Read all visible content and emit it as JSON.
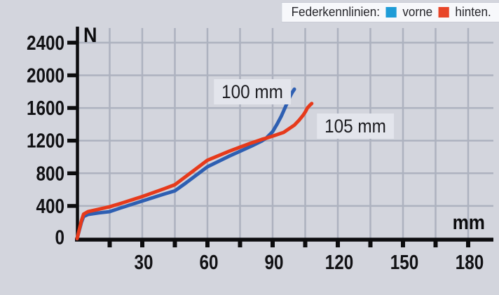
{
  "page": {
    "background": "#d3d5dd"
  },
  "legend": {
    "title": "Federkennlinien:",
    "items": [
      {
        "label": "vorne",
        "color": "#1e9cd7"
      },
      {
        "label": "hinten.",
        "color": "#e84629"
      }
    ]
  },
  "axis": {
    "x_unit": "mm",
    "y_unit": "N"
  },
  "colors": {
    "grid": "#adb2bf",
    "axis": "#0c0c0e",
    "tick_label": "#111114",
    "annotation_bg": "#e3e5ec"
  },
  "chart_data": {
    "type": "line",
    "title": "Federkennlinien",
    "xlabel": "mm",
    "ylabel": "N",
    "xlim": [
      0,
      191
    ],
    "ylim": [
      0,
      2580
    ],
    "grid": true,
    "legend_position": "top-right",
    "x_ticks": [
      15,
      30,
      45,
      60,
      75,
      90,
      105,
      120,
      135,
      150,
      165,
      180
    ],
    "x_labeled_ticks": [
      30,
      60,
      90,
      120,
      150,
      180
    ],
    "y_ticks": [
      400,
      800,
      1200,
      1600,
      2000,
      2400
    ],
    "y_origin_label": "0",
    "series": [
      {
        "name": "vorne",
        "color": "#2e5fb2",
        "annotation": "100 mm",
        "points": [
          [
            0,
            0
          ],
          [
            1,
            100
          ],
          [
            2,
            200
          ],
          [
            3,
            270
          ],
          [
            5,
            295
          ],
          [
            10,
            315
          ],
          [
            15,
            330
          ],
          [
            20,
            375
          ],
          [
            30,
            460
          ],
          [
            40,
            545
          ],
          [
            45,
            585
          ],
          [
            50,
            680
          ],
          [
            60,
            880
          ],
          [
            70,
            1010
          ],
          [
            75,
            1070
          ],
          [
            80,
            1130
          ],
          [
            85,
            1195
          ],
          [
            87,
            1230
          ],
          [
            90,
            1310
          ],
          [
            92,
            1400
          ],
          [
            94,
            1500
          ],
          [
            95,
            1560
          ],
          [
            96,
            1620
          ],
          [
            97,
            1680
          ],
          [
            98,
            1740
          ],
          [
            99,
            1790
          ],
          [
            100,
            1830
          ]
        ]
      },
      {
        "name": "hinten",
        "color": "#e63a1b",
        "annotation": "105 mm",
        "points": [
          [
            0,
            0
          ],
          [
            1,
            110
          ],
          [
            2,
            220
          ],
          [
            3,
            300
          ],
          [
            5,
            330
          ],
          [
            10,
            360
          ],
          [
            15,
            390
          ],
          [
            20,
            430
          ],
          [
            30,
            515
          ],
          [
            40,
            610
          ],
          [
            45,
            660
          ],
          [
            50,
            760
          ],
          [
            60,
            960
          ],
          [
            70,
            1070
          ],
          [
            75,
            1120
          ],
          [
            80,
            1170
          ],
          [
            85,
            1215
          ],
          [
            87,
            1230
          ],
          [
            90,
            1255
          ],
          [
            95,
            1300
          ],
          [
            100,
            1390
          ],
          [
            102,
            1445
          ],
          [
            104,
            1510
          ],
          [
            105,
            1550
          ],
          [
            106,
            1600
          ],
          [
            107,
            1630
          ],
          [
            108,
            1655
          ]
        ]
      }
    ],
    "annotations": [
      {
        "text": "100 mm",
        "series": "vorne",
        "x_mm": 80.5,
        "y_n": 1800
      },
      {
        "text": "105 mm",
        "series": "hinten",
        "x_mm": 128,
        "y_n": 1380
      }
    ]
  }
}
